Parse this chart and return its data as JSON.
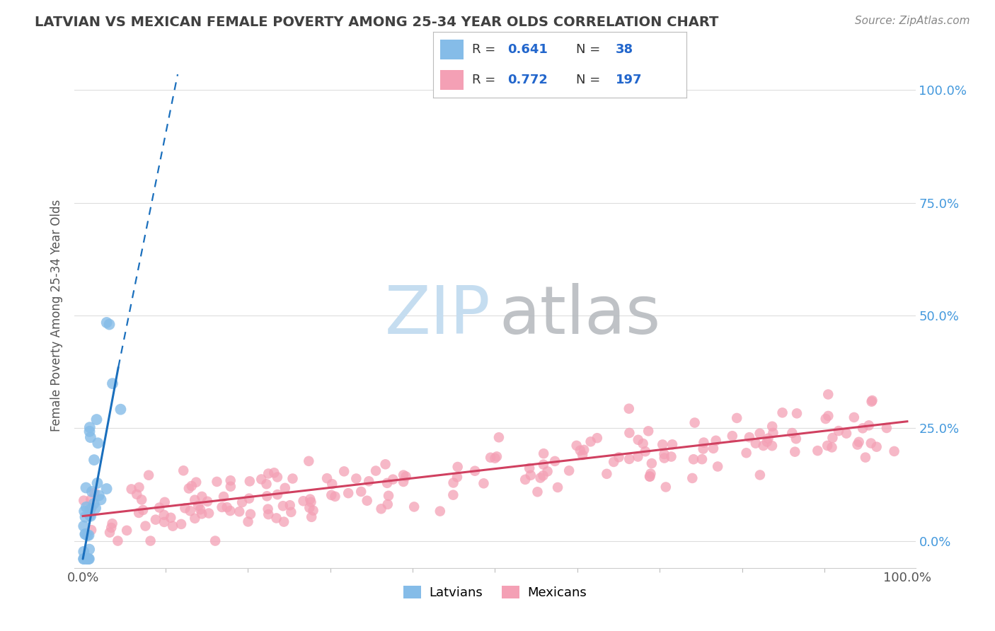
{
  "title": "LATVIAN VS MEXICAN FEMALE POVERTY AMONG 25-34 YEAR OLDS CORRELATION CHART",
  "source": "Source: ZipAtlas.com",
  "ylabel": "Female Poverty Among 25-34 Year Olds",
  "xlim": [
    -0.01,
    1.01
  ],
  "ylim": [
    -0.06,
    1.06
  ],
  "ytick_values": [
    0.0,
    0.25,
    0.5,
    0.75,
    1.0
  ],
  "ytick_labels": [
    "0.0%",
    "25.0%",
    "50.0%",
    "75.0%",
    "100.0%"
  ],
  "xtick_values": [
    0.0,
    1.0
  ],
  "xtick_labels": [
    "0.0%",
    "100.0%"
  ],
  "latvian_R": 0.641,
  "latvian_N": 38,
  "mexican_R": 0.772,
  "mexican_N": 197,
  "latvian_color": "#85bce8",
  "mexican_color": "#f4a0b5",
  "latvian_line_color": "#1a6fbd",
  "mexican_line_color": "#d04060",
  "latvian_scatter_seed": 7,
  "mexican_scatter_seed": 13,
  "watermark_zip_color": "#c5ddf0",
  "watermark_atlas_color": "#b8bcc0",
  "background_color": "#ffffff",
  "grid_color": "#dddddd",
  "title_color": "#404040",
  "right_ytick_color": "#4499dd",
  "legend_text_color": "#333333",
  "legend_value_color": "#2266cc",
  "source_color": "#888888"
}
